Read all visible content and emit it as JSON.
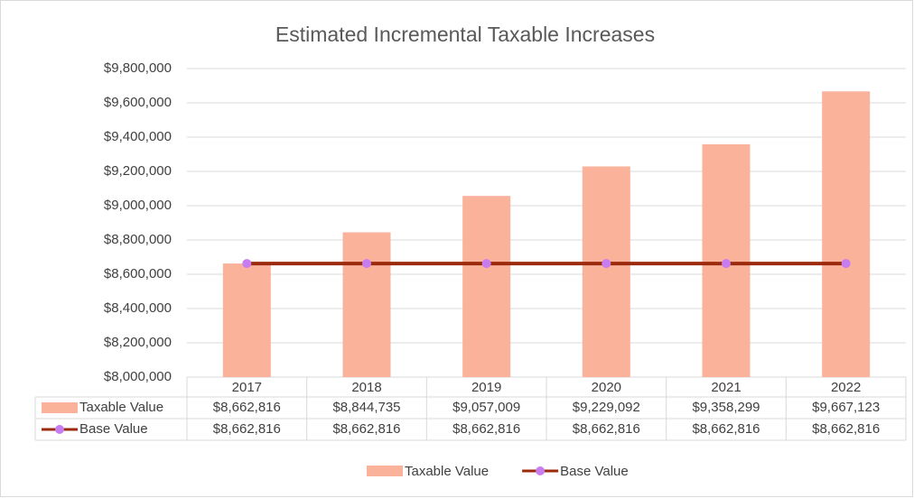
{
  "chart_data": {
    "type": "combo",
    "title": "Estimated Incremental Taxable Increases",
    "categories": [
      "2017",
      "2018",
      "2019",
      "2020",
      "2021",
      "2022"
    ],
    "series": [
      {
        "name": "Taxable Value",
        "type": "bar",
        "color": "#fbb29b",
        "values": [
          8662816,
          8844735,
          9057009,
          9229092,
          9358299,
          9667123
        ],
        "value_labels": [
          "$8,662,816",
          "$8,844,735",
          "$9,057,009",
          "$9,229,092",
          "$9,358,299",
          "$9,667,123"
        ]
      },
      {
        "name": "Base Value",
        "type": "line",
        "color": "#9c2a0c",
        "marker_color": "#c77cf0",
        "values": [
          8662816,
          8662816,
          8662816,
          8662816,
          8662816,
          8662816
        ],
        "value_labels": [
          "$8,662,816",
          "$8,662,816",
          "$8,662,816",
          "$8,662,816",
          "$8,662,816",
          "$8,662,816"
        ]
      }
    ],
    "ylim": [
      8000000,
      9800000
    ],
    "yticks": [
      {
        "value": 8000000,
        "label": "$8,000,000"
      },
      {
        "value": 8200000,
        "label": "$8,200,000"
      },
      {
        "value": 8400000,
        "label": "$8,400,000"
      },
      {
        "value": 8600000,
        "label": "$8,600,000"
      },
      {
        "value": 8800000,
        "label": "$8,800,000"
      },
      {
        "value": 9000000,
        "label": "$9,000,000"
      },
      {
        "value": 9200000,
        "label": "$9,200,000"
      },
      {
        "value": 9400000,
        "label": "$9,400,000"
      },
      {
        "value": 9600000,
        "label": "$9,600,000"
      },
      {
        "value": 9800000,
        "label": "$9,800,000"
      }
    ],
    "grid": true,
    "legend": "bottom"
  }
}
